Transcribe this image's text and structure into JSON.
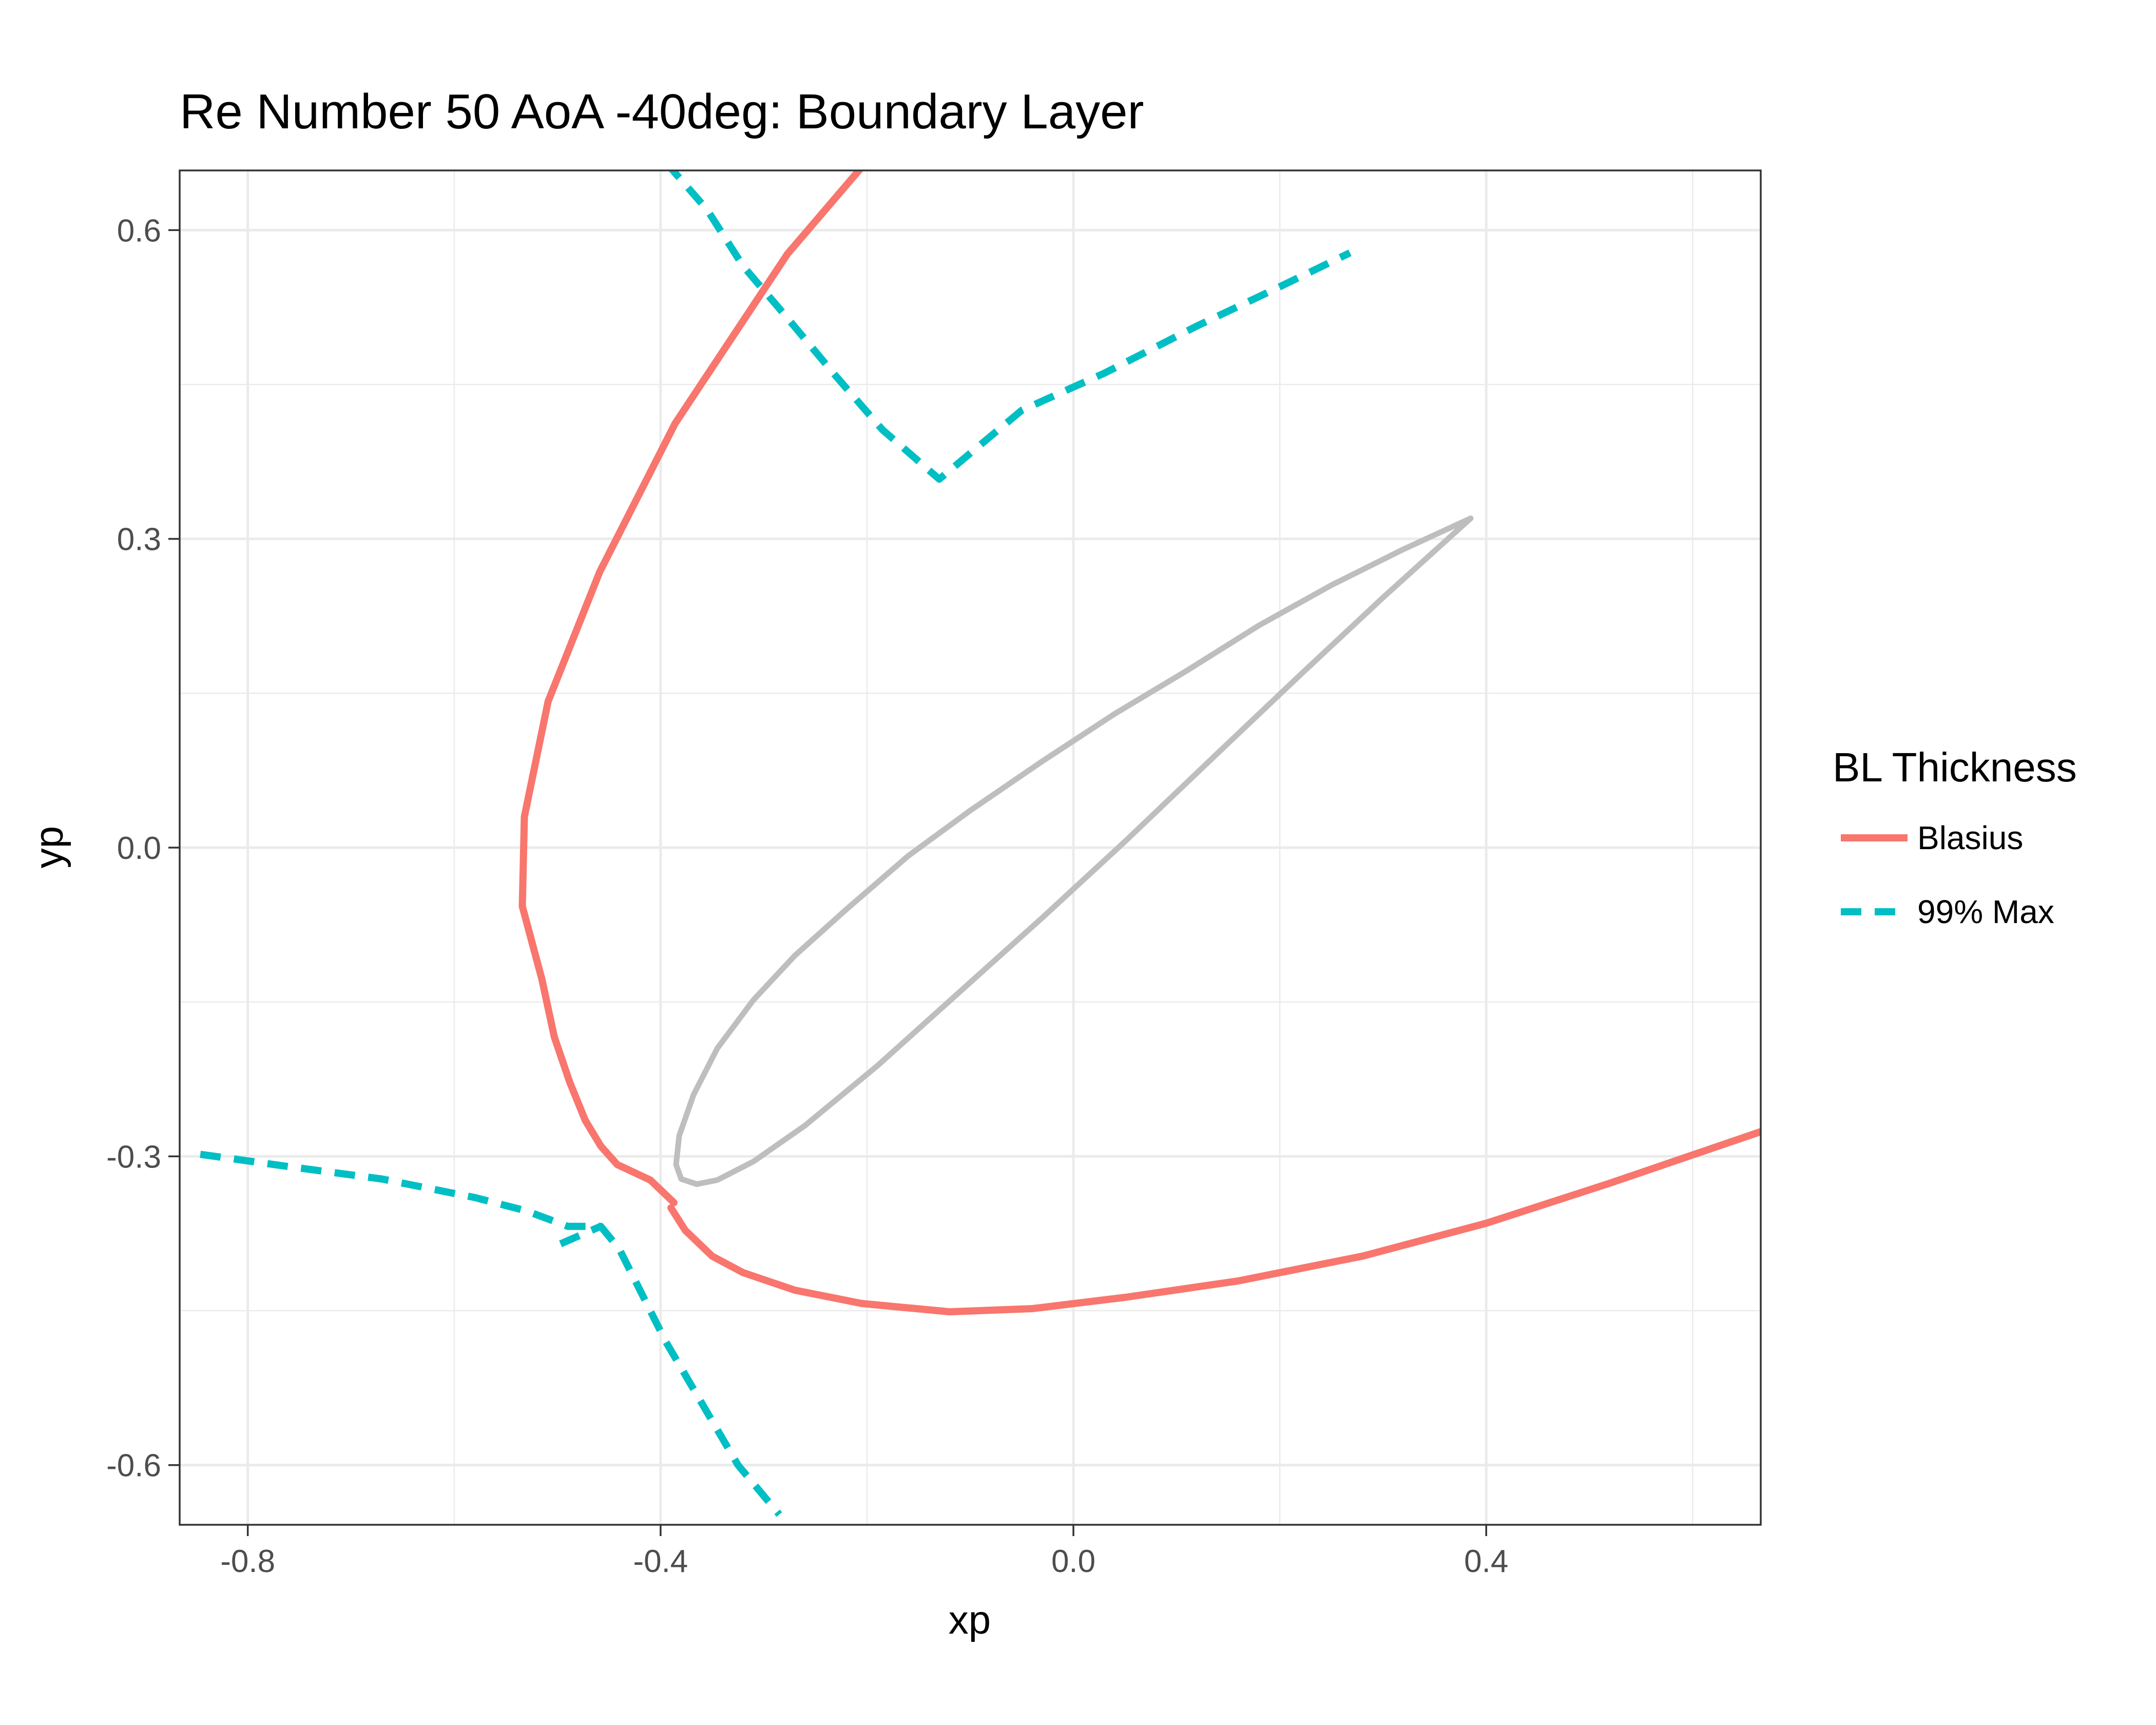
{
  "chart_data": {
    "type": "line",
    "title": "Re Number 50 AoA -40deg: Boundary Layer",
    "xlabel": "xp",
    "ylabel": "yp",
    "xlim": [
      -0.866,
      0.666
    ],
    "ylim": [
      -0.658,
      0.658
    ],
    "x_ticks": [
      -0.8,
      -0.4,
      0.0,
      0.4
    ],
    "x_tick_labels": [
      "-0.8",
      "-0.4",
      "0.0",
      "0.4"
    ],
    "y_ticks": [
      -0.6,
      -0.3,
      0.0,
      0.3,
      0.6
    ],
    "y_tick_labels": [
      "-0.6",
      "-0.3",
      "0.0",
      "0.3",
      "0.6"
    ],
    "grid": true,
    "legend": {
      "title": "BL Thickness",
      "position": "right",
      "entries": [
        {
          "label": "Blasius",
          "color": "#F8766D",
          "style": "solid"
        },
        {
          "label": "99% Max",
          "color": "#00BFC4",
          "style": "dashed"
        }
      ]
    },
    "series": [
      {
        "name": "Blasius",
        "color": "#F8766D",
        "style": "solid",
        "segments": [
          [
            [
              -0.387,
              -0.345
            ],
            [
              -0.41,
              -0.323
            ],
            [
              -0.442,
              -0.308
            ],
            [
              -0.458,
              -0.29
            ],
            [
              -0.473,
              -0.265
            ],
            [
              -0.488,
              -0.228
            ],
            [
              -0.503,
              -0.184
            ],
            [
              -0.515,
              -0.128
            ],
            [
              -0.534,
              -0.057
            ],
            [
              -0.532,
              0.03
            ],
            [
              -0.509,
              0.142
            ],
            [
              -0.459,
              0.268
            ],
            [
              -0.386,
              0.412
            ],
            [
              -0.277,
              0.577
            ],
            [
              -0.201,
              0.666
            ]
          ],
          [
            [
              -0.39,
              -0.35
            ],
            [
              -0.376,
              -0.372
            ],
            [
              -0.35,
              -0.397
            ],
            [
              -0.32,
              -0.413
            ],
            [
              -0.27,
              -0.43
            ],
            [
              -0.205,
              -0.443
            ],
            [
              -0.12,
              -0.451
            ],
            [
              -0.04,
              -0.448
            ],
            [
              0.05,
              -0.437
            ],
            [
              0.16,
              -0.421
            ],
            [
              0.28,
              -0.397
            ],
            [
              0.4,
              -0.365
            ],
            [
              0.52,
              -0.326
            ],
            [
              0.666,
              -0.276
            ]
          ]
        ]
      },
      {
        "name": "99% Max",
        "color": "#00BFC4",
        "style": "dashed",
        "segments": [
          [
            [
              -0.846,
              -0.298
            ],
            [
              -0.76,
              -0.31
            ],
            [
              -0.67,
              -0.322
            ],
            [
              -0.58,
              -0.34
            ],
            [
              -0.53,
              -0.353
            ],
            [
              -0.49,
              -0.368
            ],
            [
              -0.458,
              -0.368
            ],
            [
              -0.44,
              -0.39
            ],
            [
              -0.42,
              -0.43
            ],
            [
              -0.395,
              -0.48
            ],
            [
              -0.36,
              -0.54
            ],
            [
              -0.325,
              -0.6
            ],
            [
              -0.285,
              -0.648
            ]
          ],
          [
            [
              -0.497,
              -0.385
            ],
            [
              -0.458,
              -0.368
            ]
          ],
          [
            [
              -0.395,
              0.666
            ],
            [
              -0.355,
              0.62
            ],
            [
              -0.32,
              0.565
            ],
            [
              -0.28,
              0.518
            ],
            [
              -0.23,
              0.458
            ],
            [
              -0.185,
              0.406
            ],
            [
              -0.13,
              0.358
            ],
            [
              -0.05,
              0.425
            ],
            [
              0.03,
              0.461
            ],
            [
              0.12,
              0.507
            ],
            [
              0.2,
              0.545
            ],
            [
              0.268,
              0.578
            ]
          ]
        ]
      },
      {
        "color": "#BEBEBE",
        "style": "solid",
        "closed": true,
        "segments": [
          [
            [
              0.385,
              0.32
            ],
            [
              0.32,
              0.29
            ],
            [
              0.25,
              0.255
            ],
            [
              0.18,
              0.216
            ],
            [
              0.11,
              0.172
            ],
            [
              0.04,
              0.13
            ],
            [
              -0.03,
              0.084
            ],
            [
              -0.1,
              0.036
            ],
            [
              -0.16,
              -0.008
            ],
            [
              -0.22,
              -0.06
            ],
            [
              -0.27,
              -0.105
            ],
            [
              -0.31,
              -0.148
            ],
            [
              -0.345,
              -0.195
            ],
            [
              -0.368,
              -0.24
            ],
            [
              -0.382,
              -0.28
            ],
            [
              -0.385,
              -0.308
            ],
            [
              -0.38,
              -0.322
            ],
            [
              -0.365,
              -0.327
            ],
            [
              -0.345,
              -0.323
            ],
            [
              -0.31,
              -0.305
            ],
            [
              -0.26,
              -0.27
            ],
            [
              -0.19,
              -0.212
            ],
            [
              -0.11,
              -0.14
            ],
            [
              -0.03,
              -0.068
            ],
            [
              0.05,
              0.006
            ],
            [
              0.14,
              0.092
            ],
            [
              0.22,
              0.168
            ],
            [
              0.3,
              0.243
            ],
            [
              0.385,
              0.32
            ]
          ]
        ]
      }
    ]
  }
}
